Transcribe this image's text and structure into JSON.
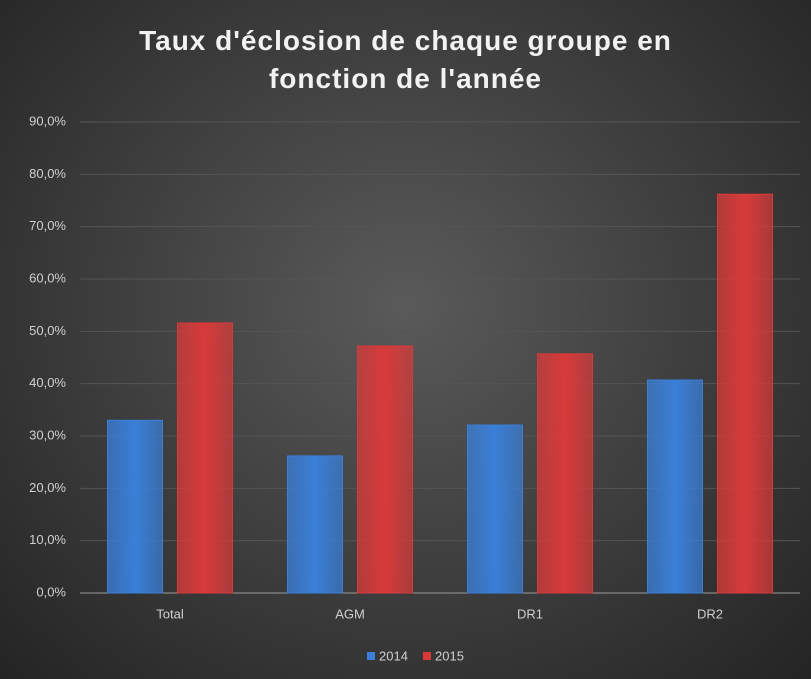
{
  "chart_data": {
    "type": "bar",
    "title": "Taux d'éclosion de chaque groupe en fonction de l'année",
    "categories": [
      "Total",
      "AGM",
      "DR1",
      "DR2"
    ],
    "series": [
      {
        "name": "2014",
        "color": "#3a7fd8",
        "values": [
          33,
          26.2,
          32.1,
          40.7
        ]
      },
      {
        "name": "2015",
        "color": "#d83a3a",
        "values": [
          51.6,
          47.2,
          45.7,
          76.2
        ]
      }
    ],
    "ylim": [
      0,
      90
    ],
    "yticks": [
      {
        "value": 0,
        "label": "0,0%"
      },
      {
        "value": 10,
        "label": "10,0%"
      },
      {
        "value": 20,
        "label": "20,0%"
      },
      {
        "value": 30,
        "label": "30,0%"
      },
      {
        "value": 40,
        "label": "40,0%"
      },
      {
        "value": 50,
        "label": "50,0%"
      },
      {
        "value": 60,
        "label": "60,0%"
      },
      {
        "value": 70,
        "label": "70,0%"
      },
      {
        "value": 80,
        "label": "80,0%"
      },
      {
        "value": 90,
        "label": "90,0%"
      }
    ],
    "grid": true,
    "legend": "bottom"
  }
}
